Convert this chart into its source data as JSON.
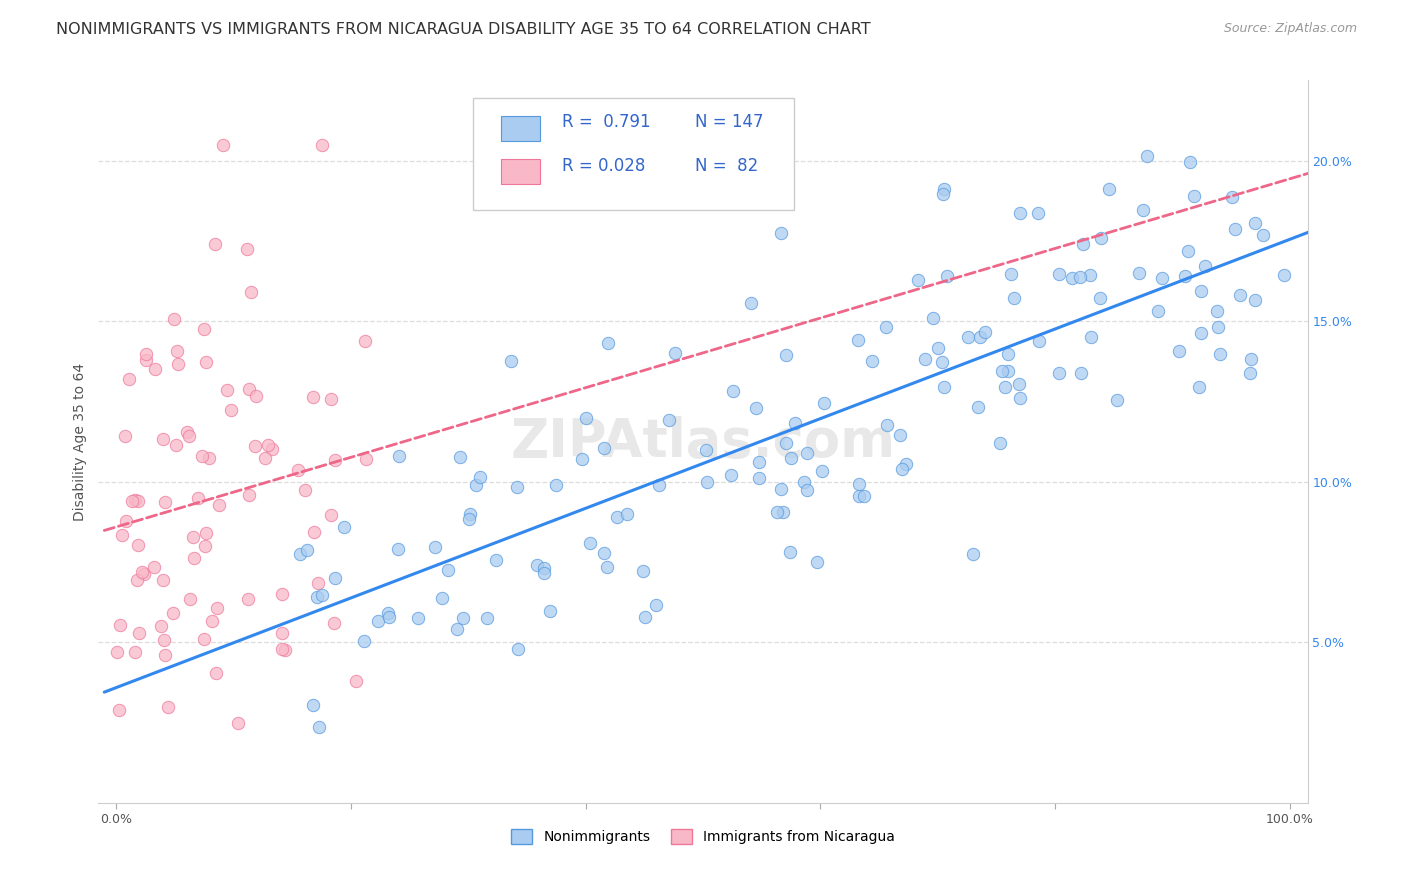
{
  "title": "NONIMMIGRANTS VS IMMIGRANTS FROM NICARAGUA DISABILITY AGE 35 TO 64 CORRELATION CHART",
  "source": "Source: ZipAtlas.com",
  "ylabel": "Disability Age 35 to 64",
  "x_min": 0.0,
  "x_max": 1.0,
  "y_min": 0.0,
  "y_max": 0.225,
  "x_ticks": [
    0.0,
    0.2,
    0.4,
    0.6,
    0.8,
    1.0
  ],
  "x_tick_labels": [
    "0.0%",
    "",
    "",
    "",
    "",
    "100.0%"
  ],
  "y_ticks": [
    0.05,
    0.1,
    0.15,
    0.2
  ],
  "y_tick_labels": [
    "5.0%",
    "10.0%",
    "15.0%",
    "20.0%"
  ],
  "nonimm_R": 0.791,
  "nonimm_N": 147,
  "imm_R": 0.028,
  "imm_N": 82,
  "nonimm_color": "#aaccf0",
  "nonimm_edge_color": "#5599dd",
  "imm_color": "#f8b8c8",
  "imm_edge_color": "#ee7799",
  "nonimm_line_color": "#3388ee",
  "imm_line_color": "#ee6688",
  "background_color": "#ffffff",
  "grid_color": "#dddddd",
  "title_color": "#333333",
  "source_color": "#999999",
  "legend_text_color": "#3366cc",
  "watermark_color": "#dddddd",
  "title_fontsize": 11.5,
  "axis_label_fontsize": 10,
  "tick_fontsize": 9,
  "legend_fontsize": 12,
  "source_fontsize": 9,
  "marker_size": 80
}
